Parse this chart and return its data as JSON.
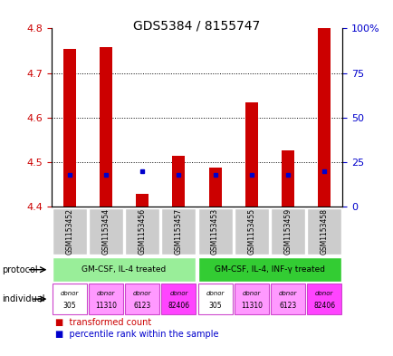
{
  "title": "GDS5384 / 8155747",
  "samples": [
    "GSM1153452",
    "GSM1153454",
    "GSM1153456",
    "GSM1153457",
    "GSM1153453",
    "GSM1153455",
    "GSM1153459",
    "GSM1153458"
  ],
  "transformed_counts": [
    4.755,
    4.758,
    4.428,
    4.513,
    4.488,
    4.633,
    4.527,
    4.8
  ],
  "percentile_ranks": [
    18,
    18,
    20,
    18,
    18,
    18,
    18,
    20
  ],
  "ylim": [
    4.4,
    4.8
  ],
  "yticks": [
    4.4,
    4.5,
    4.6,
    4.7,
    4.8
  ],
  "right_yticks": [
    0,
    25,
    50,
    75,
    100
  ],
  "right_ylim": [
    0,
    100
  ],
  "bar_color": "#cc0000",
  "dot_color": "#0000cc",
  "bar_bottom": 4.4,
  "protocol_groups": [
    {
      "label": "GM-CSF, IL-4 treated",
      "start": 0,
      "end": 3,
      "color": "#99ee99"
    },
    {
      "label": "GM-CSF, IL-4, INF-γ treated",
      "start": 4,
      "end": 7,
      "color": "#33cc33"
    }
  ],
  "individuals": [
    {
      "label": "donor\n305",
      "color": "#ffffff"
    },
    {
      "label": "donor\n11310",
      "color": "#ff99ff"
    },
    {
      "label": "donor\n6123",
      "color": "#ff99ff"
    },
    {
      "label": "donor\n82406",
      "color": "#ff44ff"
    },
    {
      "label": "donor\n305",
      "color": "#ffffff"
    },
    {
      "label": "donor\n11310",
      "color": "#ff99ff"
    },
    {
      "label": "donor\n6123",
      "color": "#ff99ff"
    },
    {
      "label": "donor\n82406",
      "color": "#ff44ff"
    }
  ],
  "background_color": "#ffffff",
  "tick_label_color_left": "#cc0000",
  "tick_label_color_right": "#0000cc"
}
